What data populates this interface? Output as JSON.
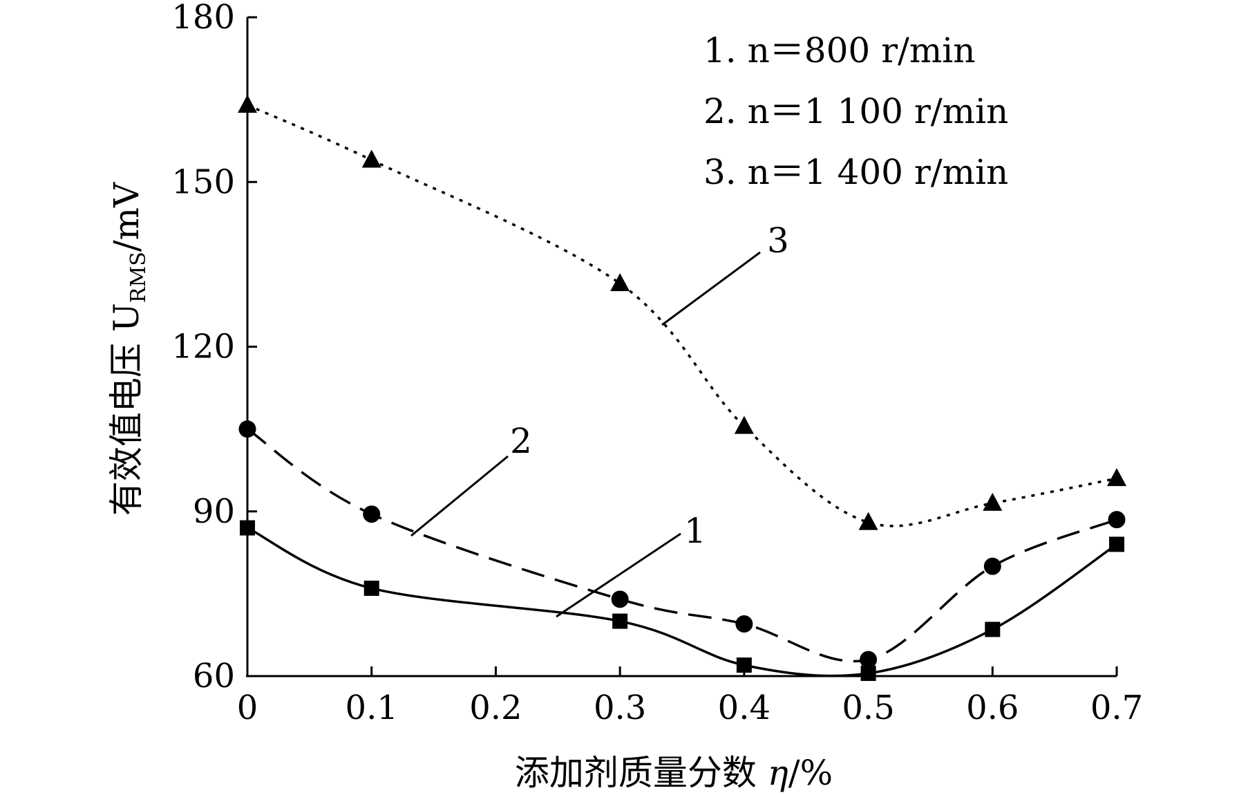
{
  "chart_data": {
    "type": "line",
    "title": "",
    "xlabel": "添加剂质量分数 η/%",
    "ylabel": "有效值电压 U_RMS/mV",
    "ylabel_parts": {
      "main": "有效值电压 U",
      "sub": "RMS",
      "unit": "/mV"
    },
    "xlabel_parts": {
      "main": "添加剂质量分数 ",
      "symbol": "η",
      "unit": "/%"
    },
    "xlim": [
      0,
      0.7
    ],
    "ylim": [
      60,
      180
    ],
    "x_ticks": [
      0,
      0.1,
      0.2,
      0.3,
      0.4,
      0.5,
      0.6,
      0.7
    ],
    "x_tick_labels": [
      "0",
      "0.1",
      "0.2",
      "0.3",
      "0.4",
      "0.5",
      "0.6",
      "0.7"
    ],
    "y_ticks": [
      60,
      90,
      120,
      150,
      180
    ],
    "y_tick_labels": [
      "60",
      "90",
      "120",
      "150",
      "180"
    ],
    "grid": false,
    "legend_position": "top-right",
    "legend": [
      "1. n＝800 r/min",
      "2. n＝1 100 r/min",
      "3. n＝1 400 r/min"
    ],
    "series": [
      {
        "name": "1",
        "marker": "square",
        "style": "solid",
        "x": [
          0,
          0.1,
          0.3,
          0.4,
          0.5,
          0.6,
          0.7
        ],
        "values": [
          87,
          76,
          70,
          62,
          60.5,
          68.5,
          84
        ]
      },
      {
        "name": "2",
        "marker": "circle",
        "style": "dashed",
        "x": [
          0,
          0.1,
          0.3,
          0.4,
          0.5,
          0.6,
          0.7
        ],
        "values": [
          105,
          89.5,
          74,
          69.5,
          63,
          80,
          88.5
        ]
      },
      {
        "name": "3",
        "marker": "triangle",
        "style": "dotted",
        "x": [
          0,
          0.1,
          0.3,
          0.4,
          0.5,
          0.6,
          0.7
        ],
        "values": [
          164,
          154,
          131.5,
          105.5,
          88,
          91.5,
          96
        ]
      }
    ]
  }
}
